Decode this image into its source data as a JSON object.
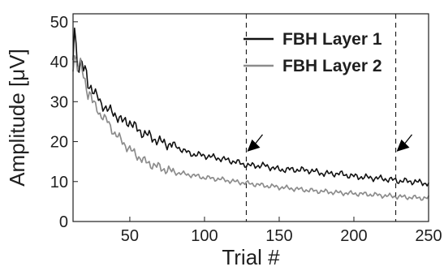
{
  "chart_data": {
    "type": "line",
    "title": "",
    "xlabel": "Trial #",
    "ylabel": "Amplitude [μV]",
    "xlim": [
      12,
      250
    ],
    "ylim": [
      0,
      52
    ],
    "xticks": [
      50,
      100,
      150,
      200,
      250
    ],
    "yticks": [
      0,
      10,
      20,
      30,
      40,
      50
    ],
    "grid": false,
    "legend_position": "top-right",
    "colors": {
      "axis": "#1f1f1f",
      "text": "#1f1f1f",
      "marker": "#000000"
    },
    "series": [
      {
        "name": "FBH Layer 1",
        "color": "#111111",
        "points": [
          [
            12,
            41
          ],
          [
            13,
            49
          ],
          [
            14,
            44
          ],
          [
            15,
            40
          ],
          [
            18,
            39
          ],
          [
            20,
            37
          ],
          [
            25,
            33
          ],
          [
            30,
            30
          ],
          [
            35,
            28
          ],
          [
            40,
            27
          ],
          [
            45,
            25
          ],
          [
            50,
            25
          ],
          [
            55,
            23
          ],
          [
            60,
            22
          ],
          [
            70,
            20
          ],
          [
            80,
            19
          ],
          [
            90,
            17
          ],
          [
            100,
            16.5
          ],
          [
            110,
            15.8
          ],
          [
            120,
            15
          ],
          [
            130,
            14
          ],
          [
            140,
            14
          ],
          [
            150,
            13
          ],
          [
            160,
            13
          ],
          [
            170,
            12.8
          ],
          [
            180,
            12
          ],
          [
            190,
            12
          ],
          [
            200,
            11.3
          ],
          [
            210,
            11
          ],
          [
            220,
            10.7
          ],
          [
            230,
            10.2
          ],
          [
            240,
            10
          ],
          [
            250,
            9.5
          ]
        ]
      },
      {
        "name": "FBH Layer 2",
        "color": "#8c8c8c",
        "points": [
          [
            12,
            40
          ],
          [
            13,
            42
          ],
          [
            15,
            39
          ],
          [
            18,
            38
          ],
          [
            20,
            35
          ],
          [
            25,
            30
          ],
          [
            30,
            27
          ],
          [
            35,
            25
          ],
          [
            40,
            22
          ],
          [
            45,
            20
          ],
          [
            50,
            18
          ],
          [
            55,
            16.5
          ],
          [
            60,
            15
          ],
          [
            70,
            13.5
          ],
          [
            80,
            12.3
          ],
          [
            90,
            11.7
          ],
          [
            100,
            11
          ],
          [
            110,
            10.6
          ],
          [
            120,
            10
          ],
          [
            130,
            9.5
          ],
          [
            140,
            9
          ],
          [
            150,
            8.6
          ],
          [
            160,
            8.2
          ],
          [
            170,
            7.8
          ],
          [
            180,
            7.5
          ],
          [
            190,
            7.2
          ],
          [
            200,
            7
          ],
          [
            210,
            6.8
          ],
          [
            220,
            6.5
          ],
          [
            230,
            6.2
          ],
          [
            240,
            6
          ],
          [
            250,
            5.8
          ]
        ]
      }
    ],
    "markers": [
      {
        "x": 128,
        "label": ""
      },
      {
        "x": 228,
        "label": ""
      }
    ]
  }
}
